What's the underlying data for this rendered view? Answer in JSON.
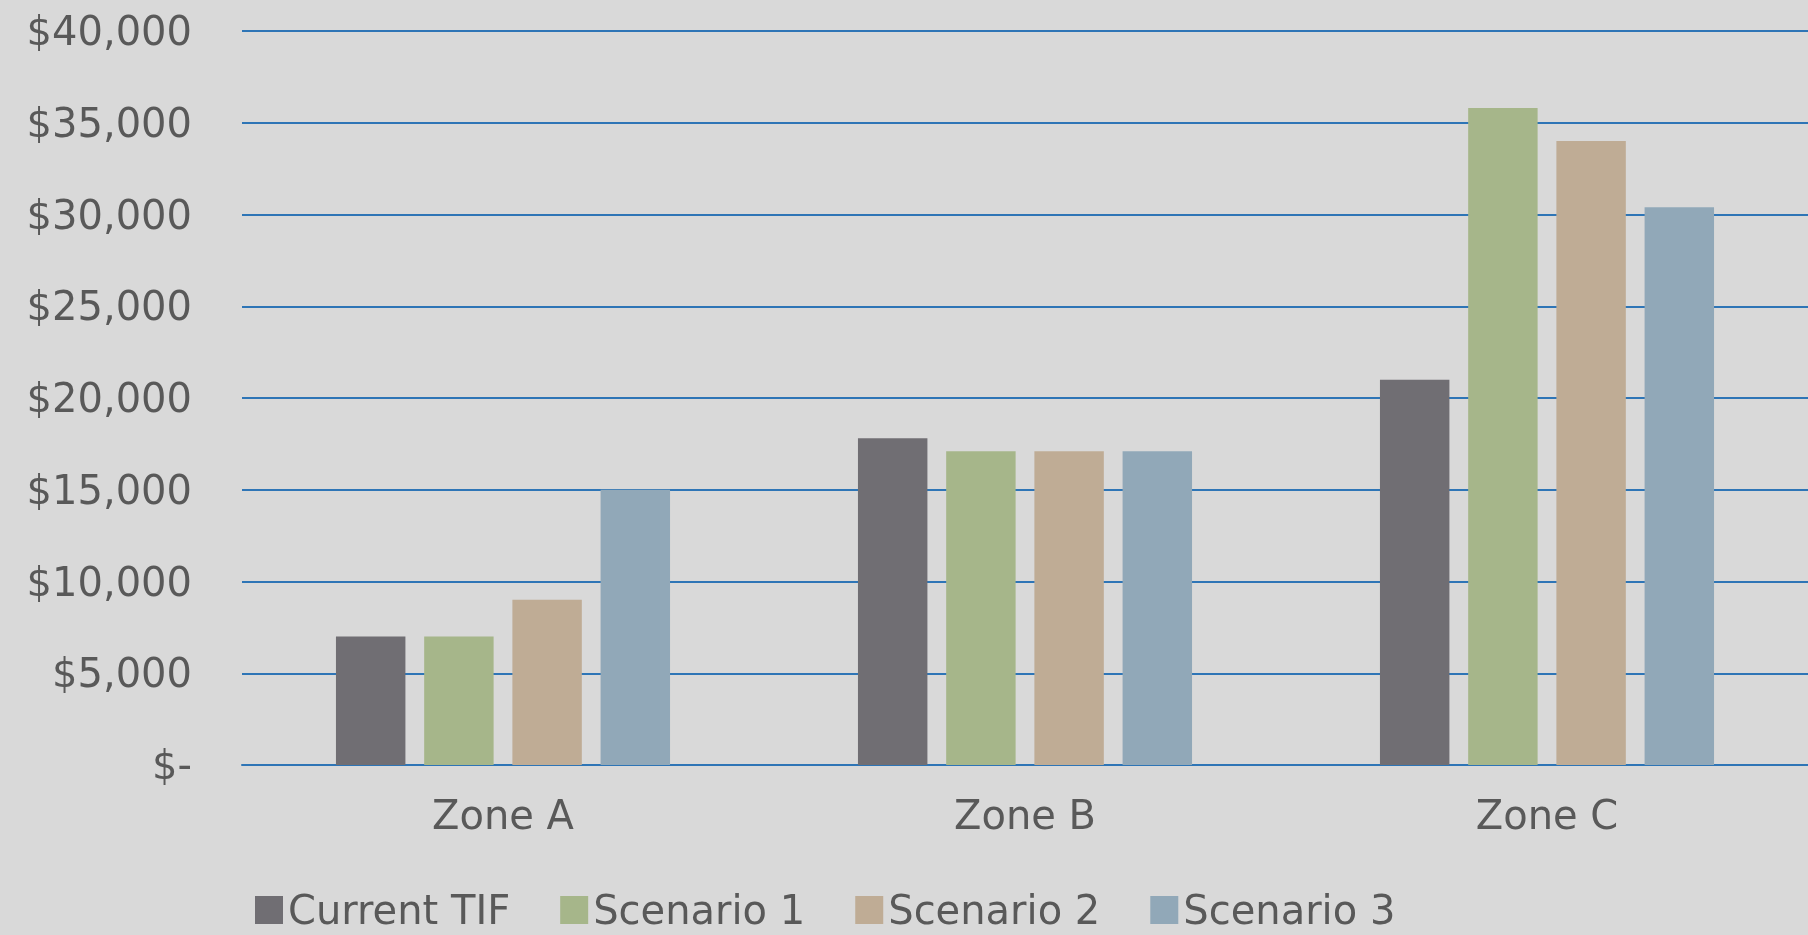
{
  "chart_data": {
    "type": "bar",
    "categories": [
      "Zone A",
      "Zone B",
      "Zone C"
    ],
    "series": [
      {
        "name": "Current TIF",
        "color": "#706e73",
        "values": [
          7000,
          17800,
          21000
        ]
      },
      {
        "name": "Scenario 1",
        "color": "#a6b68a",
        "values": [
          7000,
          17100,
          35800
        ]
      },
      {
        "name": "Scenario 2",
        "color": "#bfac95",
        "values": [
          9000,
          17100,
          34000
        ]
      },
      {
        "name": "Scenario 3",
        "color": "#91a8b8",
        "values": [
          15000,
          17100,
          30400
        ]
      }
    ],
    "ylim": [
      0,
      40000
    ],
    "yticks": [
      {
        "value": 0,
        "label": "$-"
      },
      {
        "value": 5000,
        "label": "$5,000"
      },
      {
        "value": 10000,
        "label": "$10,000"
      },
      {
        "value": 15000,
        "label": "$15,000"
      },
      {
        "value": 20000,
        "label": "$20,000"
      },
      {
        "value": 25000,
        "label": "$25,000"
      },
      {
        "value": 30000,
        "label": "$30,000"
      },
      {
        "value": 35000,
        "label": "$35,000"
      },
      {
        "value": 40000,
        "label": "$40,000"
      }
    ],
    "grid": "y",
    "legend": "bottom"
  }
}
